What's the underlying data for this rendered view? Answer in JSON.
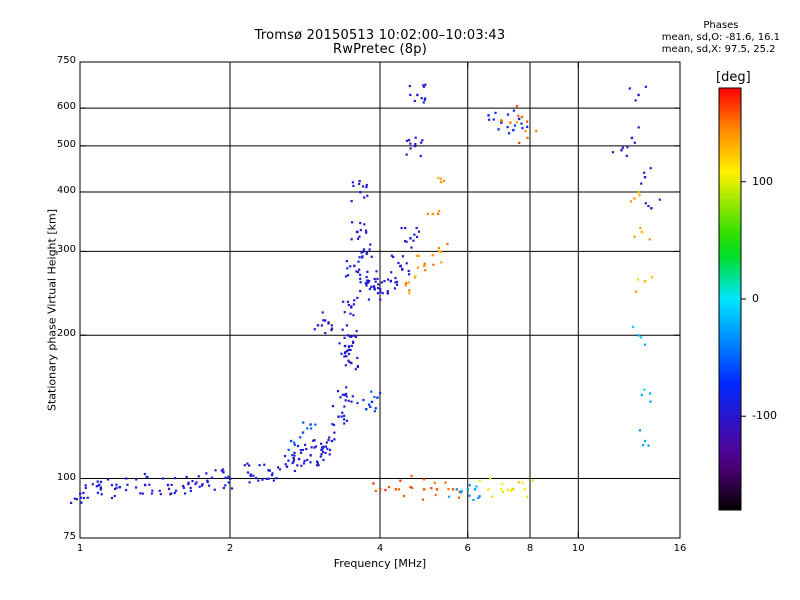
{
  "header": {
    "title": "Tromsø 20150513 10:02:00–10:03:43",
    "subtitle": "RwPretec (8p)"
  },
  "stats": {
    "heading": "Phases",
    "line_o": "mean, sd,O: -81.6, 16.1",
    "line_x": "mean, sd,X:  97.5, 25.2"
  },
  "colorbar": {
    "unit_label": "[deg]",
    "range": [
      -180,
      180
    ],
    "ticks": [
      100,
      0,
      -100
    ],
    "tick_labels": [
      "100",
      "0",
      "-100"
    ]
  },
  "chart_data": {
    "type": "scatter",
    "title": "Tromsø 20150513 10:02:00–10:03:43",
    "subtitle": "RwPretec (8p)",
    "xlabel": "Frequency [MHz]",
    "ylabel": "Stationary phase Virtual Height [km]",
    "xscale": "log",
    "yscale": "log",
    "xlim": [
      1,
      16
    ],
    "ylim": [
      75,
      750
    ],
    "xticks": [
      1,
      2,
      4,
      6,
      8,
      10,
      16
    ],
    "yticks": [
      75,
      100,
      200,
      300,
      400,
      500,
      600,
      750
    ],
    "x_gridlines": [
      2,
      4,
      6,
      8,
      10
    ],
    "y_gridlines": [
      100,
      200,
      300,
      400,
      500,
      600
    ],
    "grid": true,
    "color_value": "phase [deg]",
    "series": [
      {
        "x": [
          1.0,
          1.1,
          1.2,
          1.35,
          1.5,
          1.65,
          1.8,
          2.0,
          2.2,
          2.4,
          2.6,
          2.75,
          2.9,
          3.05,
          3.2,
          3.3,
          3.4,
          3.5
        ],
        "y": [
          93,
          95,
          96,
          97,
          97,
          98,
          99,
          100,
          102,
          104,
          106,
          110,
          112,
          115,
          120,
          135,
          150,
          175
        ],
        "phase": -95
      },
      {
        "x": [
          3.4,
          3.45,
          3.5,
          3.55,
          3.6,
          3.65,
          3.7,
          3.8,
          3.9,
          4.0,
          4.2,
          4.4,
          4.6,
          4.7,
          4.75
        ],
        "y": [
          190,
          200,
          230,
          280,
          330,
          400,
          300,
          260,
          250,
          250,
          260,
          280,
          320,
          500,
          640
        ],
        "phase": -95
      },
      {
        "x": [
          3.0,
          3.1,
          3.15
        ],
        "y": [
          210,
          215,
          212
        ],
        "phase": -105
      },
      {
        "x": [
          3.75,
          3.85,
          3.95
        ],
        "y": [
          140,
          145,
          148
        ],
        "phase": -65
      },
      {
        "x": [
          2.65,
          2.8,
          2.9
        ],
        "y": [
          120,
          125,
          130
        ],
        "phase": -60
      },
      {
        "x": [
          4.5,
          4.7,
          4.9,
          5.1,
          5.3
        ],
        "y": [
          255,
          265,
          280,
          295,
          300
        ],
        "phase": 140
      },
      {
        "x": [
          5.1,
          5.3
        ],
        "y": [
          360,
          420
        ],
        "phase": 140
      },
      {
        "x": [
          4.0,
          4.3,
          4.6,
          4.9,
          5.2,
          5.6
        ],
        "y": [
          95,
          95,
          96,
          95,
          95,
          95
        ],
        "phase": 160
      },
      {
        "x": [
          5.7,
          6.0,
          6.2
        ],
        "y": [
          95,
          95,
          95
        ],
        "phase": -30
      },
      {
        "x": [
          6.6,
          7.0,
          7.4,
          7.8
        ],
        "y": [
          95,
          95,
          95,
          95
        ],
        "phase": 110
      },
      {
        "x": [
          6.6,
          7.0,
          7.4,
          7.6
        ],
        "y": [
          580,
          560,
          540,
          570
        ],
        "phase": -80
      },
      {
        "x": [
          7.3,
          7.7,
          7.9
        ],
        "y": [
          560,
          575,
          520
        ],
        "phase": 150
      },
      {
        "x": [
          12.2,
          12.8,
          13.2,
          13.6,
          14.0
        ],
        "y": [
          490,
          520,
          640,
          430,
          370
        ],
        "phase": -100
      },
      {
        "x": [
          13.2,
          13.4,
          13.6
        ],
        "y": [
          400,
          330,
          260
        ],
        "phase": 130
      },
      {
        "x": [
          13.2,
          13.4,
          13.6
        ],
        "y": [
          200,
          150,
          120
        ],
        "phase": -20
      }
    ]
  }
}
